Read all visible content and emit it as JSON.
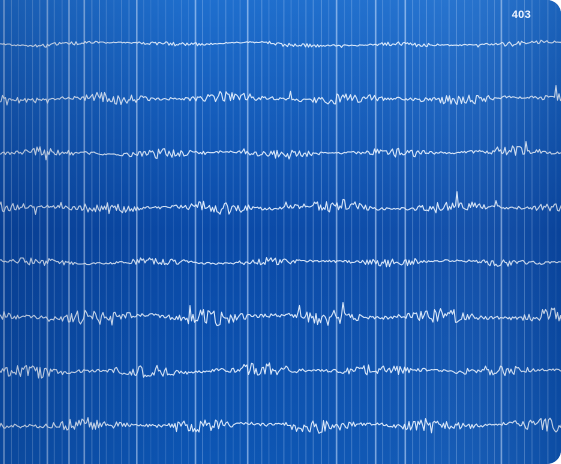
{
  "page_number": "403",
  "image": {
    "subject": "eeg-recording-trace",
    "trace_count": 8,
    "colors": {
      "background_top": "#1f6fce",
      "background_mid": "#0a4aa8",
      "background_bottom": "#0d56b4",
      "trace": "#e9f3ff",
      "grid_line": "#cfe3ff"
    }
  }
}
